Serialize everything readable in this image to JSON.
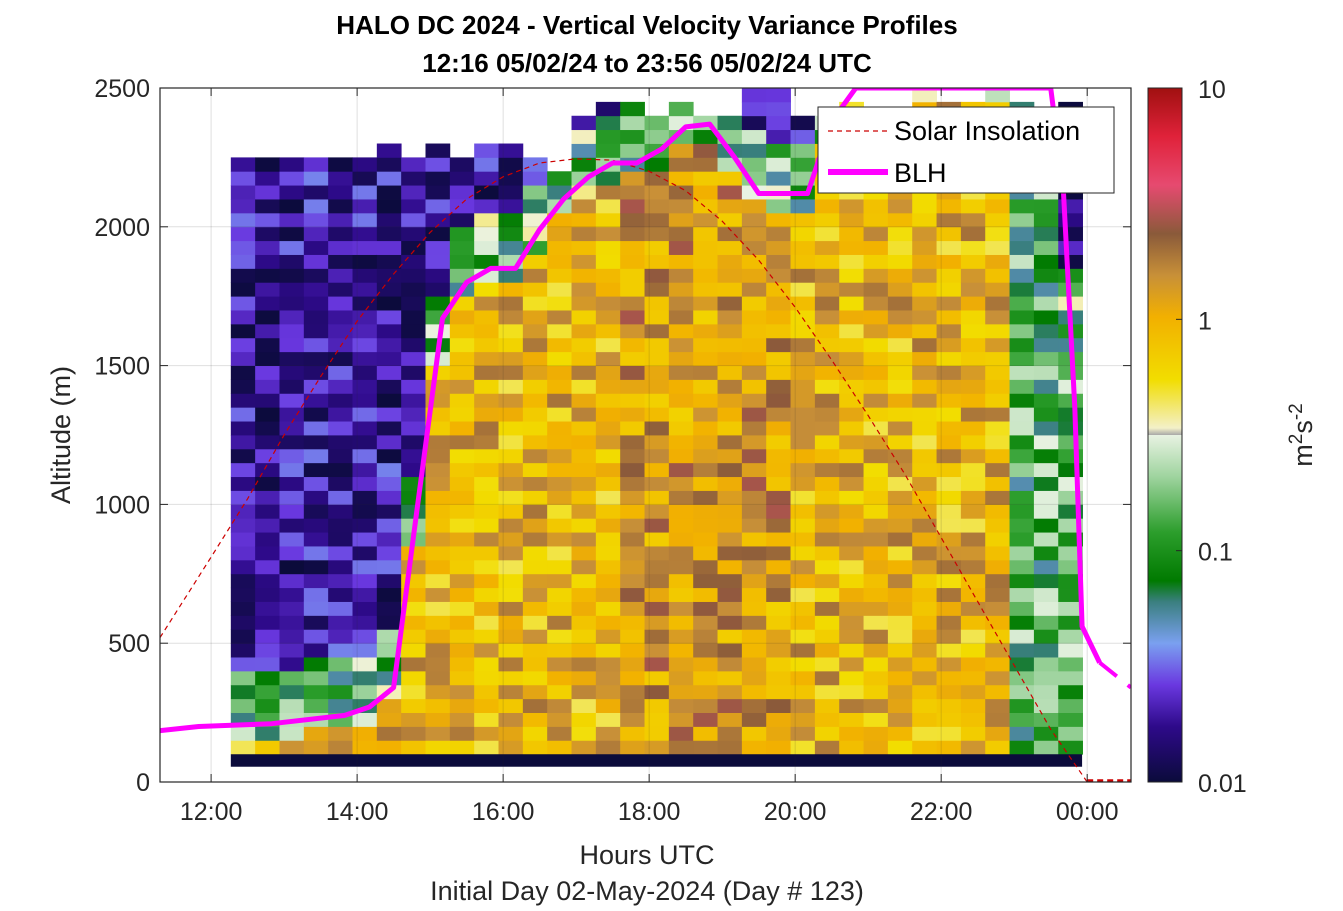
{
  "chart_data": {
    "type": "heatmap",
    "title": "HALO DC 2024 - Vertical Velocity Variance Profiles",
    "subtitle": "12:16 05/02/24 to 23:56 05/02/24  UTC",
    "xlabel": "Hours UTC",
    "xsublabel": "Initial Day 02-May-2024 (Day # 123)",
    "ylabel": "Altitude (m)",
    "xlim_hours": [
      11.3,
      24.6
    ],
    "ylim": [
      0,
      2500
    ],
    "x_ticks": [
      12,
      14,
      16,
      18,
      20,
      22,
      24
    ],
    "x_tick_labels": [
      "12:00",
      "14:00",
      "16:00",
      "18:00",
      "20:00",
      "22:00",
      "00:00"
    ],
    "y_ticks": [
      0,
      500,
      1000,
      1500,
      2000,
      2500
    ],
    "y_tick_labels": [
      "0",
      "500",
      "1000",
      "1500",
      "2000",
      "2500"
    ],
    "grid": true,
    "legend_position": "top-right",
    "colorbar": {
      "label": "m²s⁻²",
      "label_base": "m",
      "label_sup1": "2",
      "label_mid": "s",
      "label_sup2": "-2",
      "scale": "log",
      "range": [
        0.01,
        10
      ],
      "ticks": [
        0.01,
        0.1,
        1,
        10
      ],
      "tick_labels": [
        "0.01",
        "0.1",
        "1",
        "10"
      ]
    },
    "variance_grid": {
      "time_start_hours": 12.27,
      "time_end_hours": 23.93,
      "bin_minutes": 20,
      "altitude_bottom_m": 100,
      "bin_height_m": 50,
      "bottom_band_value": 0.01
    },
    "series": [
      {
        "name": "Solar Insolation",
        "style": "dashed",
        "color": "#cc0000",
        "x_hours": [
          11.3,
          12.0,
          12.5,
          13.0,
          13.5,
          14.0,
          14.5,
          15.0,
          15.5,
          16.0,
          16.5,
          17.0,
          17.5,
          18.0,
          18.5,
          19.0,
          19.5,
          20.0,
          20.5,
          21.0,
          21.5,
          22.0,
          22.5,
          23.0,
          23.5,
          24.0
        ],
        "y_m": [
          520,
          810,
          1020,
          1250,
          1460,
          1660,
          1830,
          1980,
          2100,
          2180,
          2230,
          2245,
          2240,
          2200,
          2130,
          2020,
          1880,
          1710,
          1520,
          1320,
          1110,
          880,
          650,
          420,
          190,
          0
        ]
      },
      {
        "name": "BLH",
        "style": "solid",
        "color": "#ff00ff",
        "x_hours": [
          11.3,
          11.83,
          12.83,
          13.83,
          14.17,
          14.5,
          14.83,
          15.17,
          15.5,
          15.83,
          16.17,
          16.5,
          16.83,
          17.17,
          17.5,
          17.83,
          18.17,
          18.5,
          18.83,
          19.17,
          19.5,
          19.83,
          20.17,
          20.5,
          20.83,
          21.17,
          21.5,
          21.83,
          22.17,
          22.5,
          22.83,
          23.17,
          23.5,
          23.67,
          23.83,
          23.93,
          24.17
        ],
        "y_m": [
          185,
          200,
          210,
          240,
          270,
          340,
          1000,
          1670,
          1800,
          1850,
          1850,
          1990,
          2100,
          2180,
          2230,
          2230,
          2280,
          2360,
          2370,
          2250,
          2120,
          2120,
          2120,
          2380,
          2500,
          2500,
          2500,
          2500,
          2500,
          2500,
          2500,
          2500,
          2500,
          2150,
          1350,
          560,
          430
        ]
      },
      {
        "name": "",
        "style": "dashed",
        "color": "#ff00ff",
        "x_hours": [
          24.17,
          24.6
        ],
        "y_m": [
          430,
          340
        ]
      }
    ],
    "legend_entries": [
      "Solar Insolation",
      "BLH"
    ]
  }
}
